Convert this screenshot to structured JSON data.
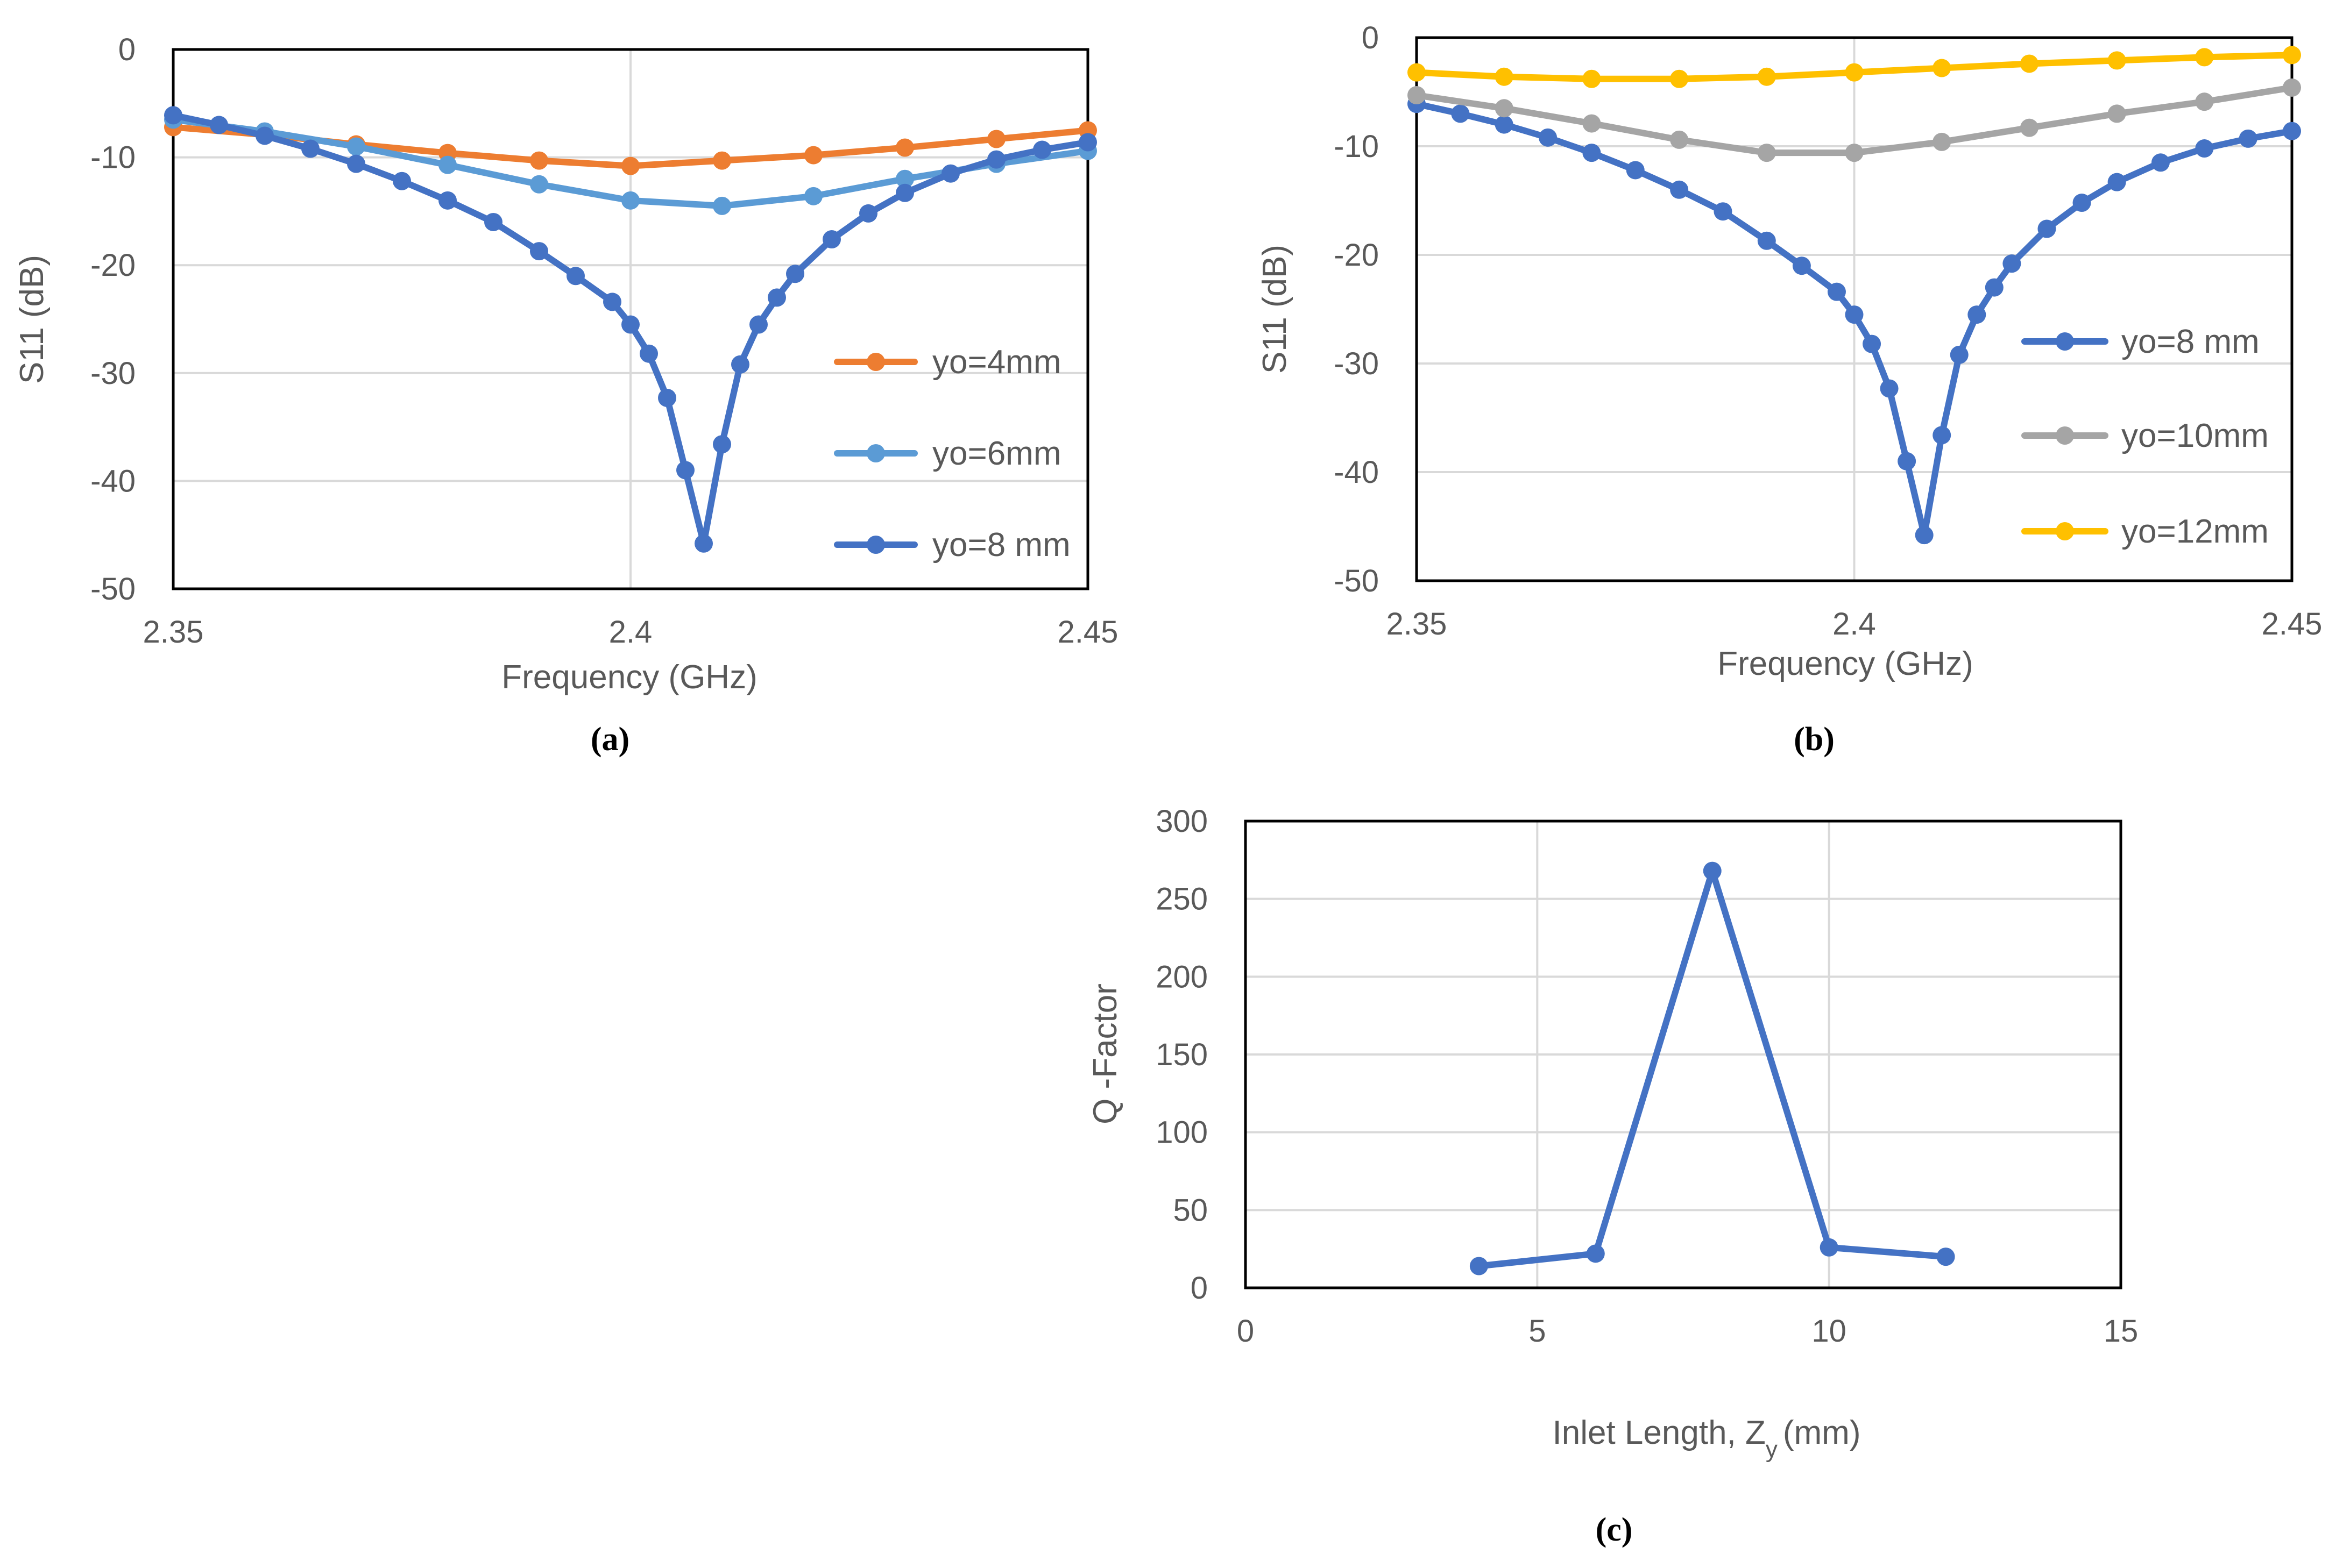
{
  "chart_data": [
    {
      "id": "a",
      "type": "line",
      "caption": "(a)",
      "xlabel": "Frequency (GHz)",
      "ylabel": "S11 (dB)",
      "xlim": [
        2.35,
        2.45
      ],
      "ylim": [
        -50,
        0
      ],
      "xticks": [
        "2.35",
        "2.4",
        "2.45"
      ],
      "xtick_values": [
        2.35,
        2.4,
        2.45
      ],
      "yticks": [
        "0",
        "-10",
        "-20",
        "-30",
        "-40",
        "-50"
      ],
      "ytick_values": [
        0,
        -10,
        -20,
        -30,
        -40,
        -50
      ],
      "grid": true,
      "legend_position": "right",
      "series": [
        {
          "name": "yo=4mm",
          "color": "#ED7D31",
          "x": [
            2.35,
            2.36,
            2.37,
            2.38,
            2.39,
            2.4,
            2.41,
            2.42,
            2.43,
            2.44,
            2.45
          ],
          "y": [
            -7.2,
            -7.9,
            -8.8,
            -9.6,
            -10.3,
            -10.8,
            -10.3,
            -9.8,
            -9.1,
            -8.3,
            -7.5
          ]
        },
        {
          "name": "yo=6mm",
          "color": "#5B9BD5",
          "x": [
            2.35,
            2.36,
            2.37,
            2.38,
            2.39,
            2.4,
            2.41,
            2.42,
            2.43,
            2.44,
            2.45
          ],
          "y": [
            -6.5,
            -7.6,
            -9.0,
            -10.7,
            -12.5,
            -14.0,
            -14.5,
            -13.6,
            -12.0,
            -10.6,
            -9.4
          ]
        },
        {
          "name": "yo=8 mm",
          "color": "#4472C4",
          "x": [
            2.35,
            2.355,
            2.36,
            2.365,
            2.37,
            2.375,
            2.38,
            2.385,
            2.39,
            2.394,
            2.398,
            2.4,
            2.402,
            2.404,
            2.406,
            2.408,
            2.41,
            2.412,
            2.414,
            2.416,
            2.418,
            2.422,
            2.426,
            2.43,
            2.435,
            2.44,
            2.445,
            2.45
          ],
          "y": [
            -6.1,
            -7.0,
            -8.0,
            -9.2,
            -10.6,
            -12.2,
            -14.0,
            -16.0,
            -18.7,
            -21.0,
            -23.4,
            -25.5,
            -28.2,
            -32.3,
            -39.0,
            -45.8,
            -36.6,
            -29.2,
            -25.5,
            -23.0,
            -20.8,
            -17.6,
            -15.2,
            -13.3,
            -11.5,
            -10.2,
            -9.3,
            -8.6
          ]
        }
      ]
    },
    {
      "id": "b",
      "type": "line",
      "caption": "(b)",
      "xlabel": "Frequency (GHz)",
      "ylabel": "S11 (dB)",
      "xlim": [
        2.35,
        2.45
      ],
      "ylim": [
        -50,
        0
      ],
      "xticks": [
        "2.35",
        "2.4",
        "2.45"
      ],
      "xtick_values": [
        2.35,
        2.4,
        2.45
      ],
      "yticks": [
        "0",
        "-10",
        "-20",
        "-30",
        "-40",
        "-50"
      ],
      "ytick_values": [
        0,
        -10,
        -20,
        -30,
        -40,
        -50
      ],
      "grid": true,
      "legend_position": "right",
      "series": [
        {
          "name": "yo=8 mm",
          "color": "#4472C4",
          "x": [
            2.35,
            2.355,
            2.36,
            2.365,
            2.37,
            2.375,
            2.38,
            2.385,
            2.39,
            2.394,
            2.398,
            2.4,
            2.402,
            2.404,
            2.406,
            2.408,
            2.41,
            2.412,
            2.414,
            2.416,
            2.418,
            2.422,
            2.426,
            2.43,
            2.435,
            2.44,
            2.445,
            2.45
          ],
          "y": [
            -6.1,
            -7.0,
            -8.0,
            -9.2,
            -10.6,
            -12.2,
            -14.0,
            -16.0,
            -18.7,
            -21.0,
            -23.4,
            -25.5,
            -28.2,
            -32.3,
            -39.0,
            -45.8,
            -36.6,
            -29.2,
            -25.5,
            -23.0,
            -20.8,
            -17.6,
            -15.2,
            -13.3,
            -11.5,
            -10.2,
            -9.3,
            -8.6
          ]
        },
        {
          "name": "yo=10mm",
          "color": "#A5A5A5",
          "x": [
            2.35,
            2.36,
            2.37,
            2.38,
            2.39,
            2.4,
            2.41,
            2.42,
            2.43,
            2.44,
            2.45
          ],
          "y": [
            -5.3,
            -6.5,
            -7.9,
            -9.4,
            -10.6,
            -10.6,
            -9.6,
            -8.3,
            -7.0,
            -5.9,
            -4.6
          ]
        },
        {
          "name": "yo=12mm",
          "color": "#FFC000",
          "x": [
            2.35,
            2.36,
            2.37,
            2.38,
            2.39,
            2.4,
            2.41,
            2.42,
            2.43,
            2.44,
            2.45
          ],
          "y": [
            -3.2,
            -3.6,
            -3.8,
            -3.8,
            -3.6,
            -3.2,
            -2.8,
            -2.4,
            -2.1,
            -1.8,
            -1.6
          ]
        }
      ]
    },
    {
      "id": "c",
      "type": "line",
      "caption": "(c)",
      "xlabel_main": "Inlet Length, Z",
      "xlabel_sub": "y",
      "xlabel_unit": "(mm)",
      "ylabel": "Q -Factor",
      "xlim": [
        0,
        15
      ],
      "ylim": [
        0,
        300
      ],
      "xticks": [
        "0",
        "5",
        "10",
        "15"
      ],
      "xtick_values": [
        0,
        5,
        10,
        15
      ],
      "yticks": [
        "0",
        "50",
        "100",
        "150",
        "200",
        "250",
        "300"
      ],
      "ytick_values": [
        0,
        50,
        100,
        150,
        200,
        250,
        300
      ],
      "grid": true,
      "series": [
        {
          "name": "Q-Factor",
          "color": "#4472C4",
          "x": [
            4,
            6,
            8,
            10,
            12
          ],
          "y": [
            14,
            22,
            268,
            26,
            20
          ]
        }
      ]
    }
  ]
}
